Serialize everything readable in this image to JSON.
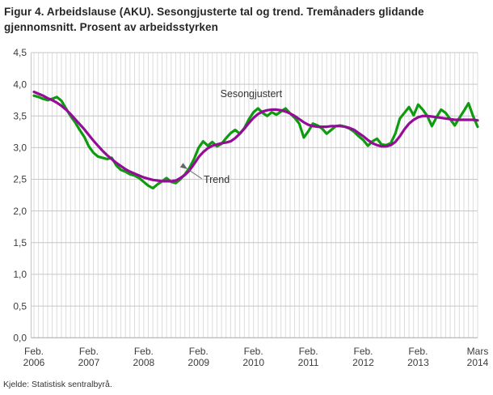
{
  "figure": {
    "title_line1": "Figur 4. Arbeidslause (AKU). Sesongjusterte tal og trend. Tremånaders glidande",
    "title_line2": "gjennomsnitt. Prosent av arbeidsstyrken",
    "source": "Kjelde: Statistisk sentralbyrå."
  },
  "chart_data": {
    "type": "line",
    "title": "Figur 4. Arbeidslause (AKU). Sesongjusterte tal og trend. Tremånaders glidande gjennomsnitt. Prosent av arbeidsstyrken",
    "ylabel": "Prosent av arbeidsstyrken",
    "ylim": [
      0,
      4.5
    ],
    "y_tick_step": 0.5,
    "y_tick_labels": [
      "0,0",
      "0,5",
      "1,0",
      "1,5",
      "2,0",
      "2,5",
      "3,0",
      "3,5",
      "4,0",
      "4,5"
    ],
    "x_unit": "month",
    "x_range": "Feb. 2006 - Mars 2014",
    "n_points": 98,
    "grid": {
      "vertical": "monthly",
      "horizontal": "every 0.5"
    },
    "legend_position": "inline-annotations",
    "x_ticks": [
      {
        "line1": "Feb.",
        "line2": "2006",
        "month": 0
      },
      {
        "line1": "Feb.",
        "line2": "2007",
        "month": 12
      },
      {
        "line1": "Feb.",
        "line2": "2008",
        "month": 24
      },
      {
        "line1": "Feb.",
        "line2": "2009",
        "month": 36
      },
      {
        "line1": "Feb.",
        "line2": "2010",
        "month": 48
      },
      {
        "line1": "Feb.",
        "line2": "2011",
        "month": 60
      },
      {
        "line1": "Feb.",
        "line2": "2012",
        "month": 72
      },
      {
        "line1": "Feb.",
        "line2": "2013",
        "month": 84
      },
      {
        "line1": "Mars",
        "line2": "2014",
        "month": 97
      }
    ],
    "series": [
      {
        "name": "Sesongjustert",
        "color": "#0f9b0f",
        "values": [
          3.82,
          3.8,
          3.77,
          3.75,
          3.77,
          3.8,
          3.74,
          3.62,
          3.5,
          3.4,
          3.28,
          3.17,
          3.02,
          2.92,
          2.86,
          2.84,
          2.82,
          2.84,
          2.72,
          2.65,
          2.62,
          2.58,
          2.56,
          2.52,
          2.46,
          2.4,
          2.36,
          2.42,
          2.47,
          2.52,
          2.46,
          2.44,
          2.5,
          2.58,
          2.68,
          2.82,
          3.0,
          3.1,
          3.03,
          3.09,
          3.02,
          3.06,
          3.15,
          3.23,
          3.28,
          3.22,
          3.31,
          3.45,
          3.56,
          3.62,
          3.55,
          3.5,
          3.56,
          3.52,
          3.57,
          3.62,
          3.54,
          3.47,
          3.38,
          3.16,
          3.26,
          3.38,
          3.35,
          3.3,
          3.22,
          3.28,
          3.34,
          3.35,
          3.33,
          3.3,
          3.25,
          3.18,
          3.12,
          3.03,
          3.1,
          3.14,
          3.05,
          3.04,
          3.07,
          3.22,
          3.46,
          3.55,
          3.64,
          3.51,
          3.68,
          3.6,
          3.5,
          3.34,
          3.48,
          3.6,
          3.55,
          3.45,
          3.35,
          3.47,
          3.58,
          3.7,
          3.5,
          3.33
        ]
      },
      {
        "name": "Trend",
        "color": "#940d97",
        "values": [
          3.88,
          3.85,
          3.82,
          3.78,
          3.75,
          3.71,
          3.66,
          3.6,
          3.53,
          3.45,
          3.37,
          3.29,
          3.2,
          3.11,
          3.03,
          2.95,
          2.88,
          2.82,
          2.76,
          2.71,
          2.66,
          2.62,
          2.59,
          2.56,
          2.53,
          2.51,
          2.49,
          2.48,
          2.47,
          2.47,
          2.47,
          2.48,
          2.52,
          2.57,
          2.64,
          2.74,
          2.85,
          2.93,
          2.99,
          3.03,
          3.05,
          3.07,
          3.08,
          3.1,
          3.15,
          3.22,
          3.3,
          3.39,
          3.47,
          3.53,
          3.57,
          3.59,
          3.6,
          3.6,
          3.59,
          3.57,
          3.54,
          3.5,
          3.45,
          3.4,
          3.36,
          3.34,
          3.33,
          3.33,
          3.33,
          3.34,
          3.34,
          3.34,
          3.33,
          3.31,
          3.28,
          3.23,
          3.18,
          3.12,
          3.07,
          3.04,
          3.02,
          3.02,
          3.04,
          3.09,
          3.18,
          3.29,
          3.38,
          3.44,
          3.48,
          3.5,
          3.5,
          3.49,
          3.48,
          3.47,
          3.46,
          3.45,
          3.44,
          3.44,
          3.44,
          3.44,
          3.44,
          3.43
        ]
      }
    ],
    "annotations": [
      {
        "id": "sesongjustert",
        "text": "Sesongjustert",
        "month": 47.5,
        "value": 3.8,
        "anchor": "middle"
      },
      {
        "id": "trend",
        "text": "Trend",
        "month": 37.1,
        "value": 2.44,
        "anchor": "start",
        "arrow": {
          "from_month": 36.7,
          "from_value": 2.51,
          "to_month": 33.6,
          "to_value": 2.66
        }
      }
    ],
    "style": {
      "v_grid_color": "#dcdcdc",
      "h_grid_color": "#c6c6c6",
      "axis_color": "#a6a6a6",
      "tick_label_color": "#3c3c3c",
      "annotation_color": "#333333",
      "arrow_color": "#666666",
      "line_width": 3.2
    }
  }
}
